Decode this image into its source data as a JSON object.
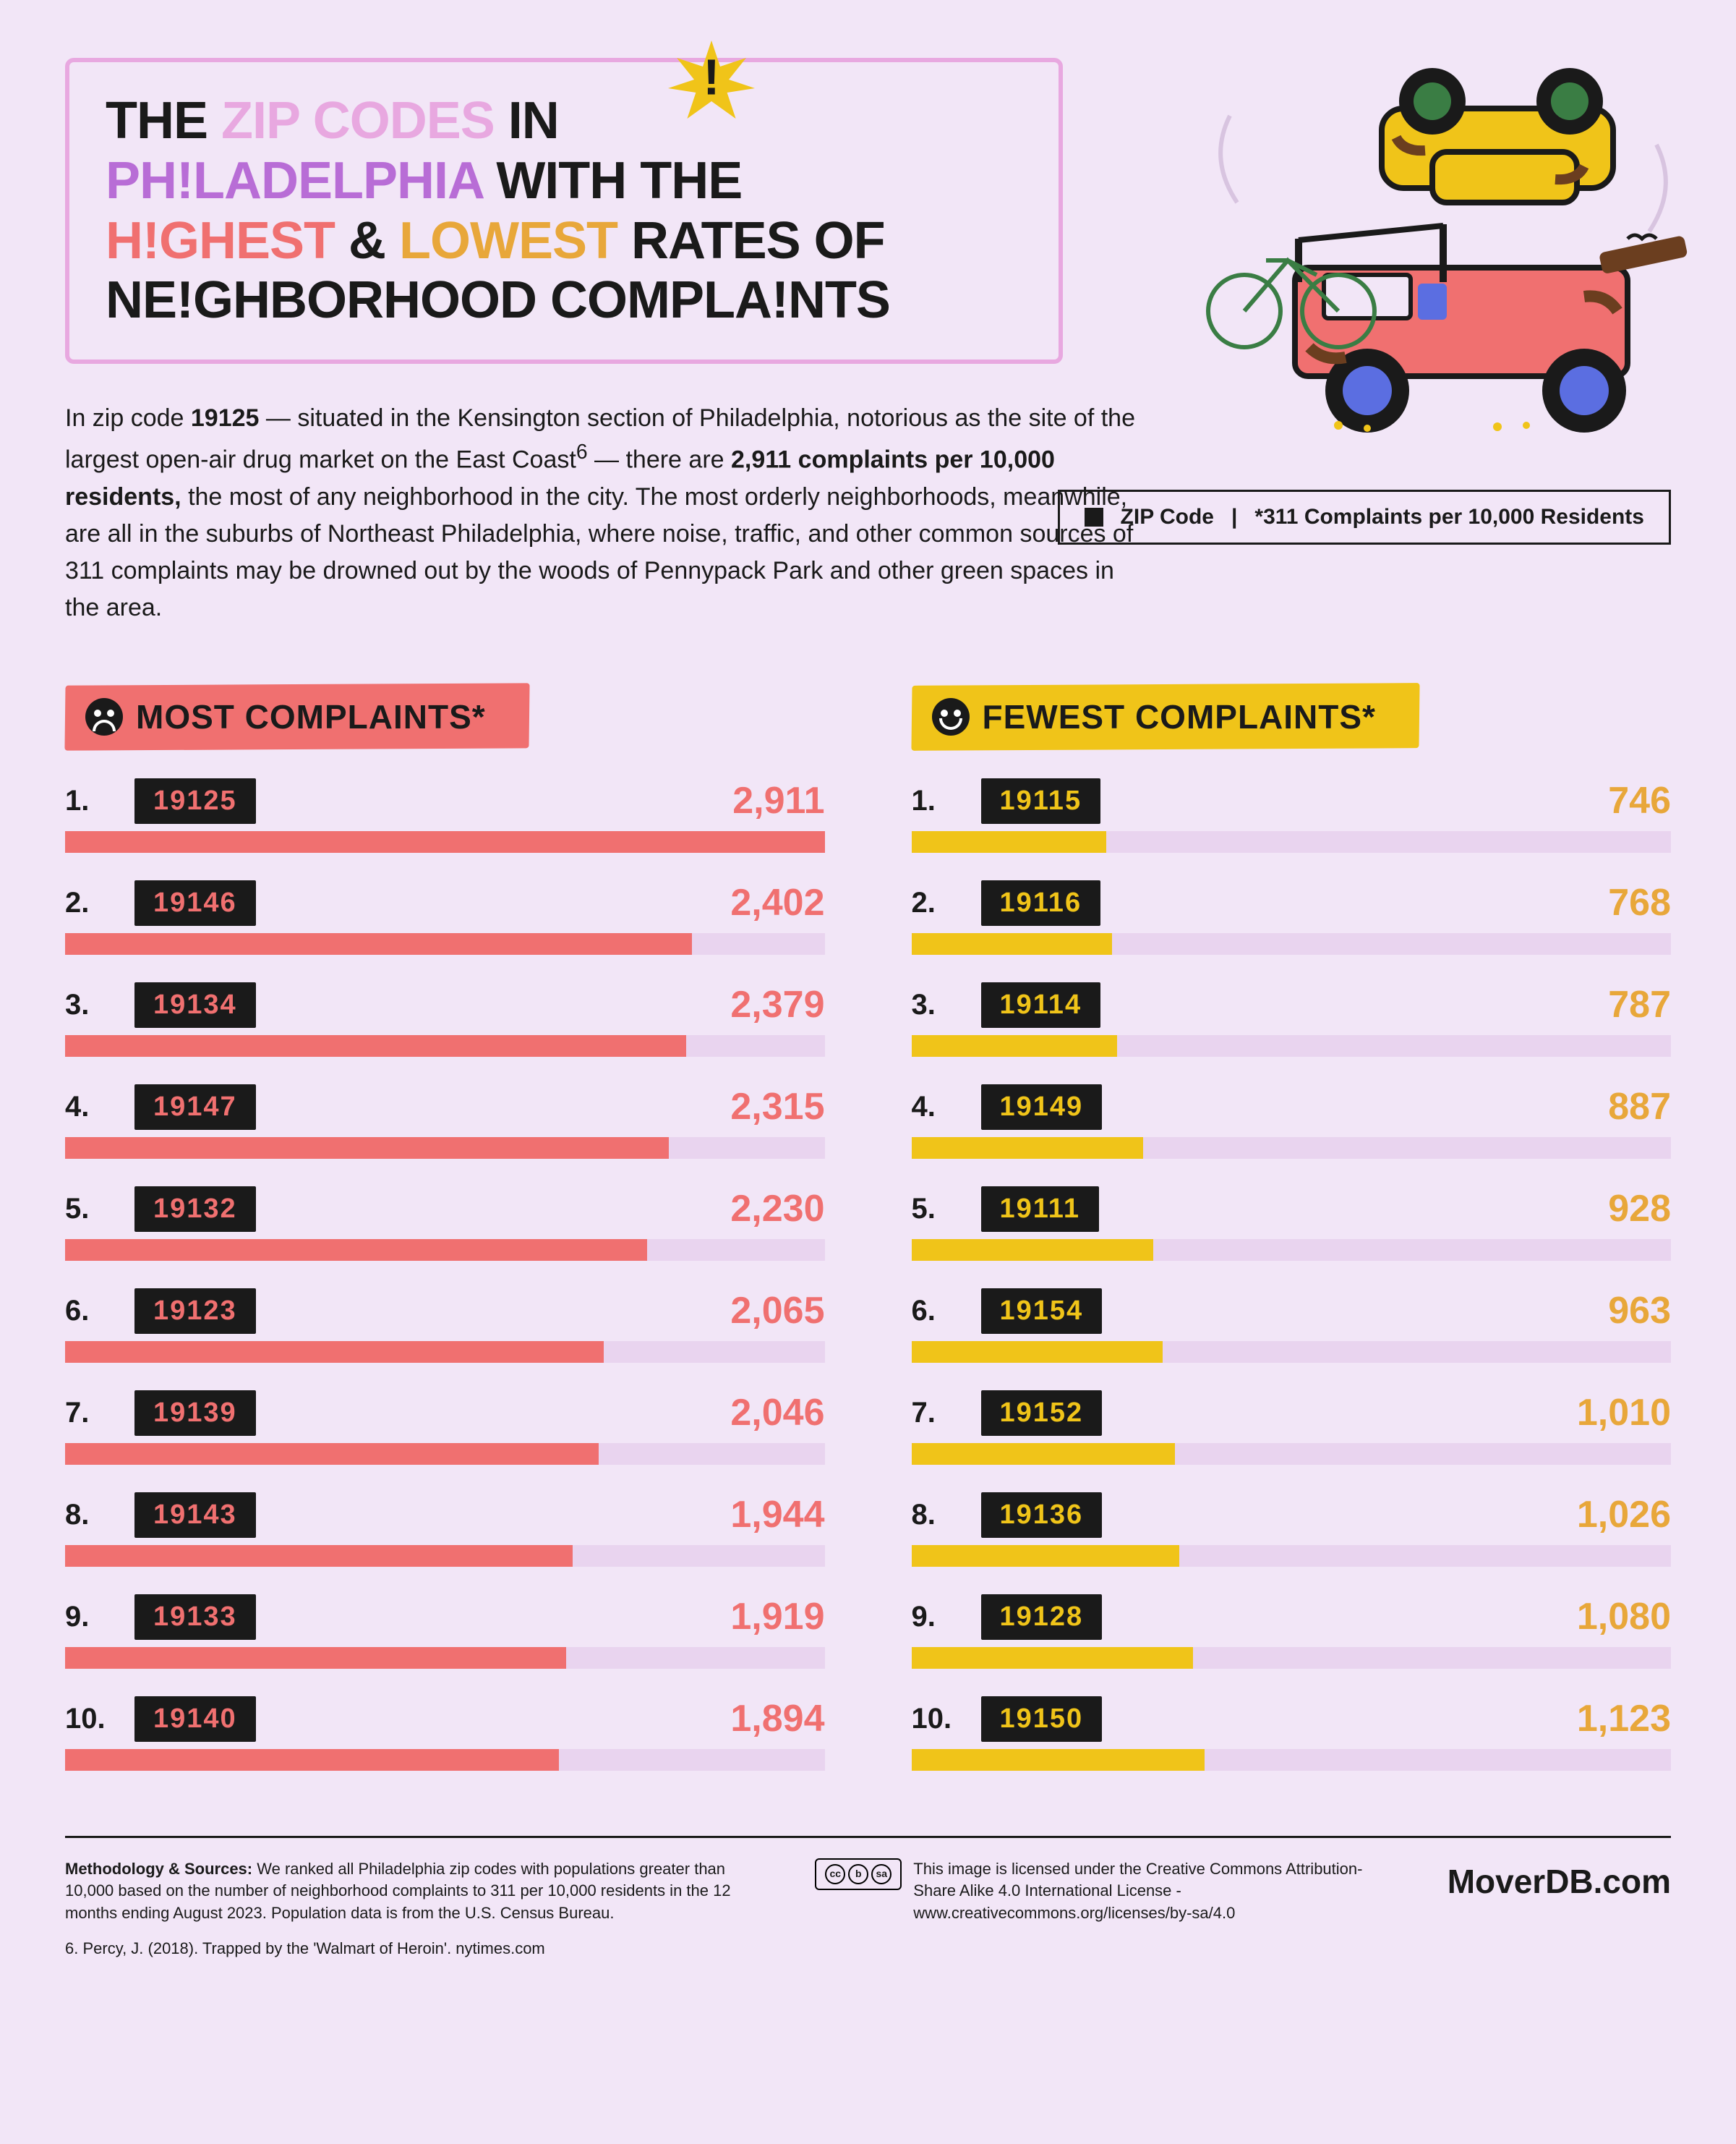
{
  "colors": {
    "bg": "#f2e6f7",
    "black": "#1a1a1a",
    "pink_border": "#e8a8e0",
    "purple": "#b86dd6",
    "coral": "#f07070",
    "gold": "#e8a73a",
    "gold_bright": "#f0c419",
    "track": "#e9d4ef",
    "most_fill": "#f07070",
    "most_header_bg": "#f07070",
    "fewest_fill": "#f0c419",
    "fewest_header_bg": "#f0c419",
    "zip_text_most": "#f07070",
    "zip_text_fewest": "#f0c419"
  },
  "title": {
    "line1_a": "THE ",
    "line1_b": "ZIP CODES",
    "line1_c": " IN",
    "line2_a": "PH!LADELPHIA",
    "line2_b": " WITH THE",
    "line3_a": "H!GHEST",
    "line3_b": " & ",
    "line3_c": "LOWEST",
    "line3_d": " RATES OF",
    "line4": "NE!GHBORHOOD COMPLA!NTS"
  },
  "intro": {
    "pre": "In zip code ",
    "zip_bold": "19125",
    "mid1": " — situated in the Kensington section of Philadelphia, notorious as the site of the largest open-air drug market on the East Coast",
    "sup": "6",
    "mid2": " — there are ",
    "stat_bold": "2,911 complaints per 10,000 residents,",
    "rest": " the most of any neighborhood in the city. The most orderly neighborhoods, meanwhile, are all in the suburbs of Northeast Philadelphia, where noise, traffic, and other common sources of 311 complaints may be drowned out by the woods of Pennypack Park and other green spaces in the area."
  },
  "legend": {
    "zip_label": "ZIP Code",
    "note": "*311 Complaints per 10,000 Residents"
  },
  "most": {
    "title": "MOST COMPLAINTS*",
    "max": 2911,
    "rows": [
      {
        "rank": "1.",
        "zip": "19125",
        "value": 2911,
        "display": "2,911"
      },
      {
        "rank": "2.",
        "zip": "19146",
        "value": 2402,
        "display": "2,402"
      },
      {
        "rank": "3.",
        "zip": "19134",
        "value": 2379,
        "display": "2,379"
      },
      {
        "rank": "4.",
        "zip": "19147",
        "value": 2315,
        "display": "2,315"
      },
      {
        "rank": "5.",
        "zip": "19132",
        "value": 2230,
        "display": "2,230"
      },
      {
        "rank": "6.",
        "zip": "19123",
        "value": 2065,
        "display": "2,065"
      },
      {
        "rank": "7.",
        "zip": "19139",
        "value": 2046,
        "display": "2,046"
      },
      {
        "rank": "8.",
        "zip": "19143",
        "value": 1944,
        "display": "1,944"
      },
      {
        "rank": "9.",
        "zip": "19133",
        "value": 1919,
        "display": "1,919"
      },
      {
        "rank": "10.",
        "zip": "19140",
        "value": 1894,
        "display": "1,894"
      }
    ]
  },
  "fewest": {
    "title": "FEWEST COMPLAINTS*",
    "max": 2911,
    "rows": [
      {
        "rank": "1.",
        "zip": "19115",
        "value": 746,
        "display": "746"
      },
      {
        "rank": "2.",
        "zip": "19116",
        "value": 768,
        "display": "768"
      },
      {
        "rank": "3.",
        "zip": "19114",
        "value": 787,
        "display": "787"
      },
      {
        "rank": "4.",
        "zip": "19149",
        "value": 887,
        "display": "887"
      },
      {
        "rank": "5.",
        "zip": "19111",
        "value": 928,
        "display": "928"
      },
      {
        "rank": "6.",
        "zip": "19154",
        "value": 963,
        "display": "963"
      },
      {
        "rank": "7.",
        "zip": "19152",
        "value": 1010,
        "display": "1,010"
      },
      {
        "rank": "8.",
        "zip": "19136",
        "value": 1026,
        "display": "1,026"
      },
      {
        "rank": "9.",
        "zip": "19128",
        "value": 1080,
        "display": "1,080"
      },
      {
        "rank": "10.",
        "zip": "19150",
        "value": 1123,
        "display": "1,123"
      }
    ]
  },
  "footer": {
    "methodology_label": "Methodology & Sources: ",
    "methodology": "We ranked all Philadelphia zip codes with populations greater than 10,000 based on the number of neighborhood complaints to 311 per 10,000 residents in the 12 months ending August 2023. Population data is from the U.S. Census Bureau.",
    "source6": "6. Percy, J. (2018). Trapped by the 'Walmart of Heroin'. nytimes.com",
    "cc_text": "This image is licensed under the Creative Commons Attribution-Share Alike 4.0 International License - www.creativecommons.org/licenses/by-sa/4.0",
    "brand": "MoverDB.com"
  },
  "illustration": {
    "jeep_body": "#f07070",
    "jeep_wheel": "#5b6ee1",
    "top_car_body": "#f0c419",
    "top_car_wheel": "#3a7d44",
    "bike": "#3a7d44"
  }
}
